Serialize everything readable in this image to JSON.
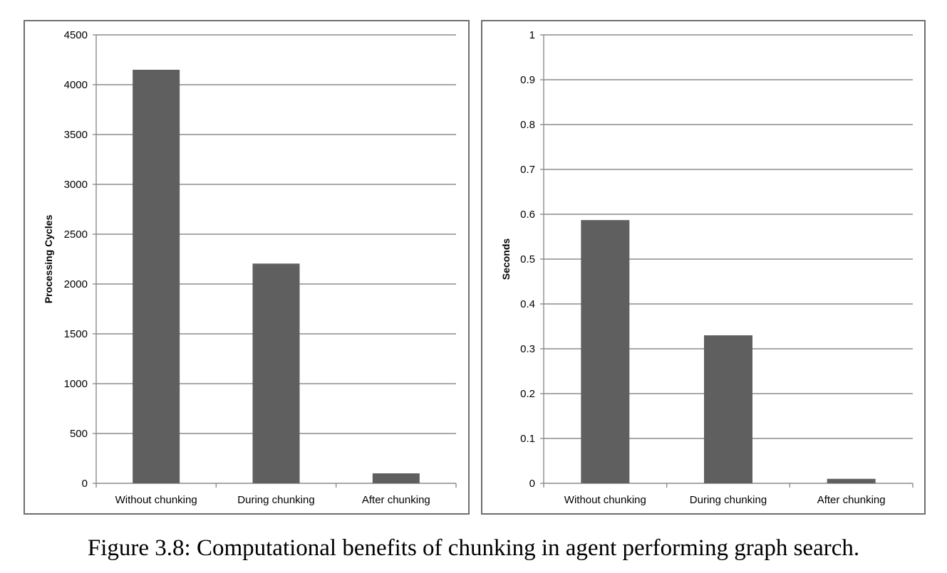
{
  "caption": "Figure 3.8: Computational benefits of chunking in agent performing graph search.",
  "colors": {
    "bar": "#5f5f5f",
    "grid": "#8c8c8c",
    "axis": "#8c8c8c",
    "frame": "#6e6e6e"
  },
  "chart_data": [
    {
      "type": "bar",
      "categories": [
        "Without chunking",
        "During chunking",
        "After chunking"
      ],
      "values": [
        4150,
        2205,
        100
      ],
      "title": "",
      "xlabel": "",
      "ylabel": "Processing Cycles",
      "ylim": [
        0,
        4500
      ],
      "yticks": [
        "0",
        "500",
        "1000",
        "1500",
        "2000",
        "2500",
        "3000",
        "3500",
        "4000",
        "4500"
      ],
      "grid": true,
      "legend": "none"
    },
    {
      "type": "bar",
      "categories": [
        "Without chunking",
        "During chunking",
        "After chunking"
      ],
      "values": [
        0.587,
        0.33,
        0.01
      ],
      "title": "",
      "xlabel": "",
      "ylabel": "Seconds",
      "ylim": [
        0,
        1
      ],
      "yticks": [
        "0",
        "0.1",
        "0.2",
        "0.3",
        "0.4",
        "0.5",
        "0.6",
        "0.7",
        "0.8",
        "0.9",
        "1"
      ],
      "grid": true,
      "legend": "none"
    }
  ]
}
